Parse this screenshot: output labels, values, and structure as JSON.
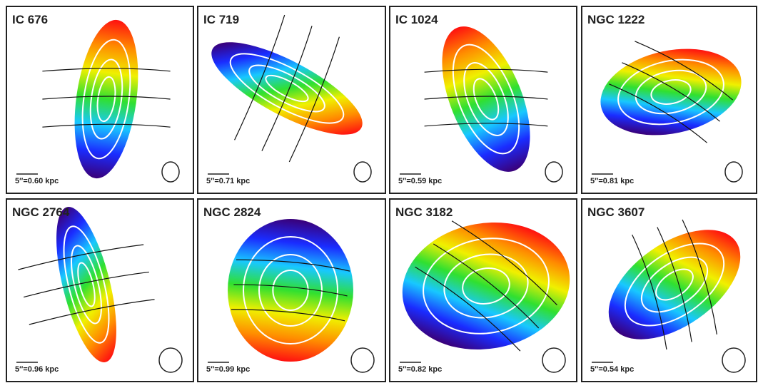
{
  "panels": [
    {
      "name": "IC 676",
      "scale": "5″=0.60 kpc"
    },
    {
      "name": "IC 719",
      "scale": "5″=0.71 kpc"
    },
    {
      "name": "IC 1024",
      "scale": "5″=0.59 kpc"
    },
    {
      "name": "NGC 1222",
      "scale": "5″=0.81 kpc"
    },
    {
      "name": "NGC 2764",
      "scale": "5″=0.96 kpc"
    },
    {
      "name": "NGC 2824",
      "scale": "5″=0.99 kpc"
    },
    {
      "name": "NGC 3182",
      "scale": "5″=0.82 kpc"
    },
    {
      "name": "NGC 3607",
      "scale": "5″=0.54 kpc"
    }
  ]
}
